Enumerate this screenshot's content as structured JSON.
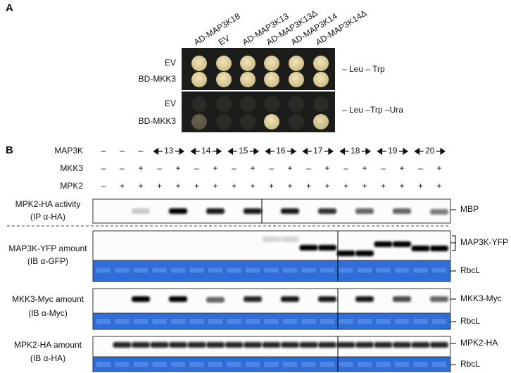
{
  "panel_a": {
    "label": "A",
    "columns": [
      "AD-MAP3K18",
      "EV",
      "AD-MAP3K13",
      "AD-MAP3K13Δ",
      "AD-MAP3K14",
      "AD-MAP3K14Δ"
    ],
    "rows": [
      "EV",
      "BD-MKK3",
      "EV",
      "BD-MKK3"
    ],
    "conditions": [
      "– Leu – Trp",
      "– Leu –Trp –Ura"
    ]
  },
  "panel_b": {
    "label": "B",
    "treatment_names": [
      "MAP3K",
      "MKK3",
      "MPK2"
    ],
    "map3k_lanes": [
      "–",
      "–",
      "–"
    ],
    "map3k_groups": [
      "13",
      "14",
      "15",
      "16",
      "17",
      "18",
      "19",
      "20"
    ],
    "mkk3_lanes": [
      "–",
      "–",
      "+",
      "–",
      "+",
      "–",
      "+",
      "–",
      "+",
      "–",
      "+",
      "–",
      "+",
      "–",
      "+",
      "–",
      "+",
      "–",
      "+"
    ],
    "mpk2_lanes": [
      "–",
      "+",
      "+",
      "+",
      "+",
      "+",
      "+",
      "+",
      "+",
      "+",
      "+",
      "+",
      "+",
      "+",
      "+",
      "+",
      "+",
      "+",
      "+"
    ],
    "blots": [
      {
        "title": "MPK2-HA activity",
        "method": "(IP α-HA)",
        "markers": [
          "MBP"
        ]
      },
      {
        "title": "MAP3K-YFP amount",
        "method": "(IB α-GFP)",
        "markers": [
          "MAP3K-YFP",
          "RbcL"
        ]
      },
      {
        "title": "MKK3-Myc amount",
        "method": "(IB α-Myc)",
        "markers": [
          "MKK3-Myc",
          "RbcL"
        ]
      },
      {
        "title": "MPK2-HA amount",
        "method": "(IB α-HA)",
        "markers": [
          "MPK2-HA",
          "RbcL"
        ]
      }
    ]
  }
}
